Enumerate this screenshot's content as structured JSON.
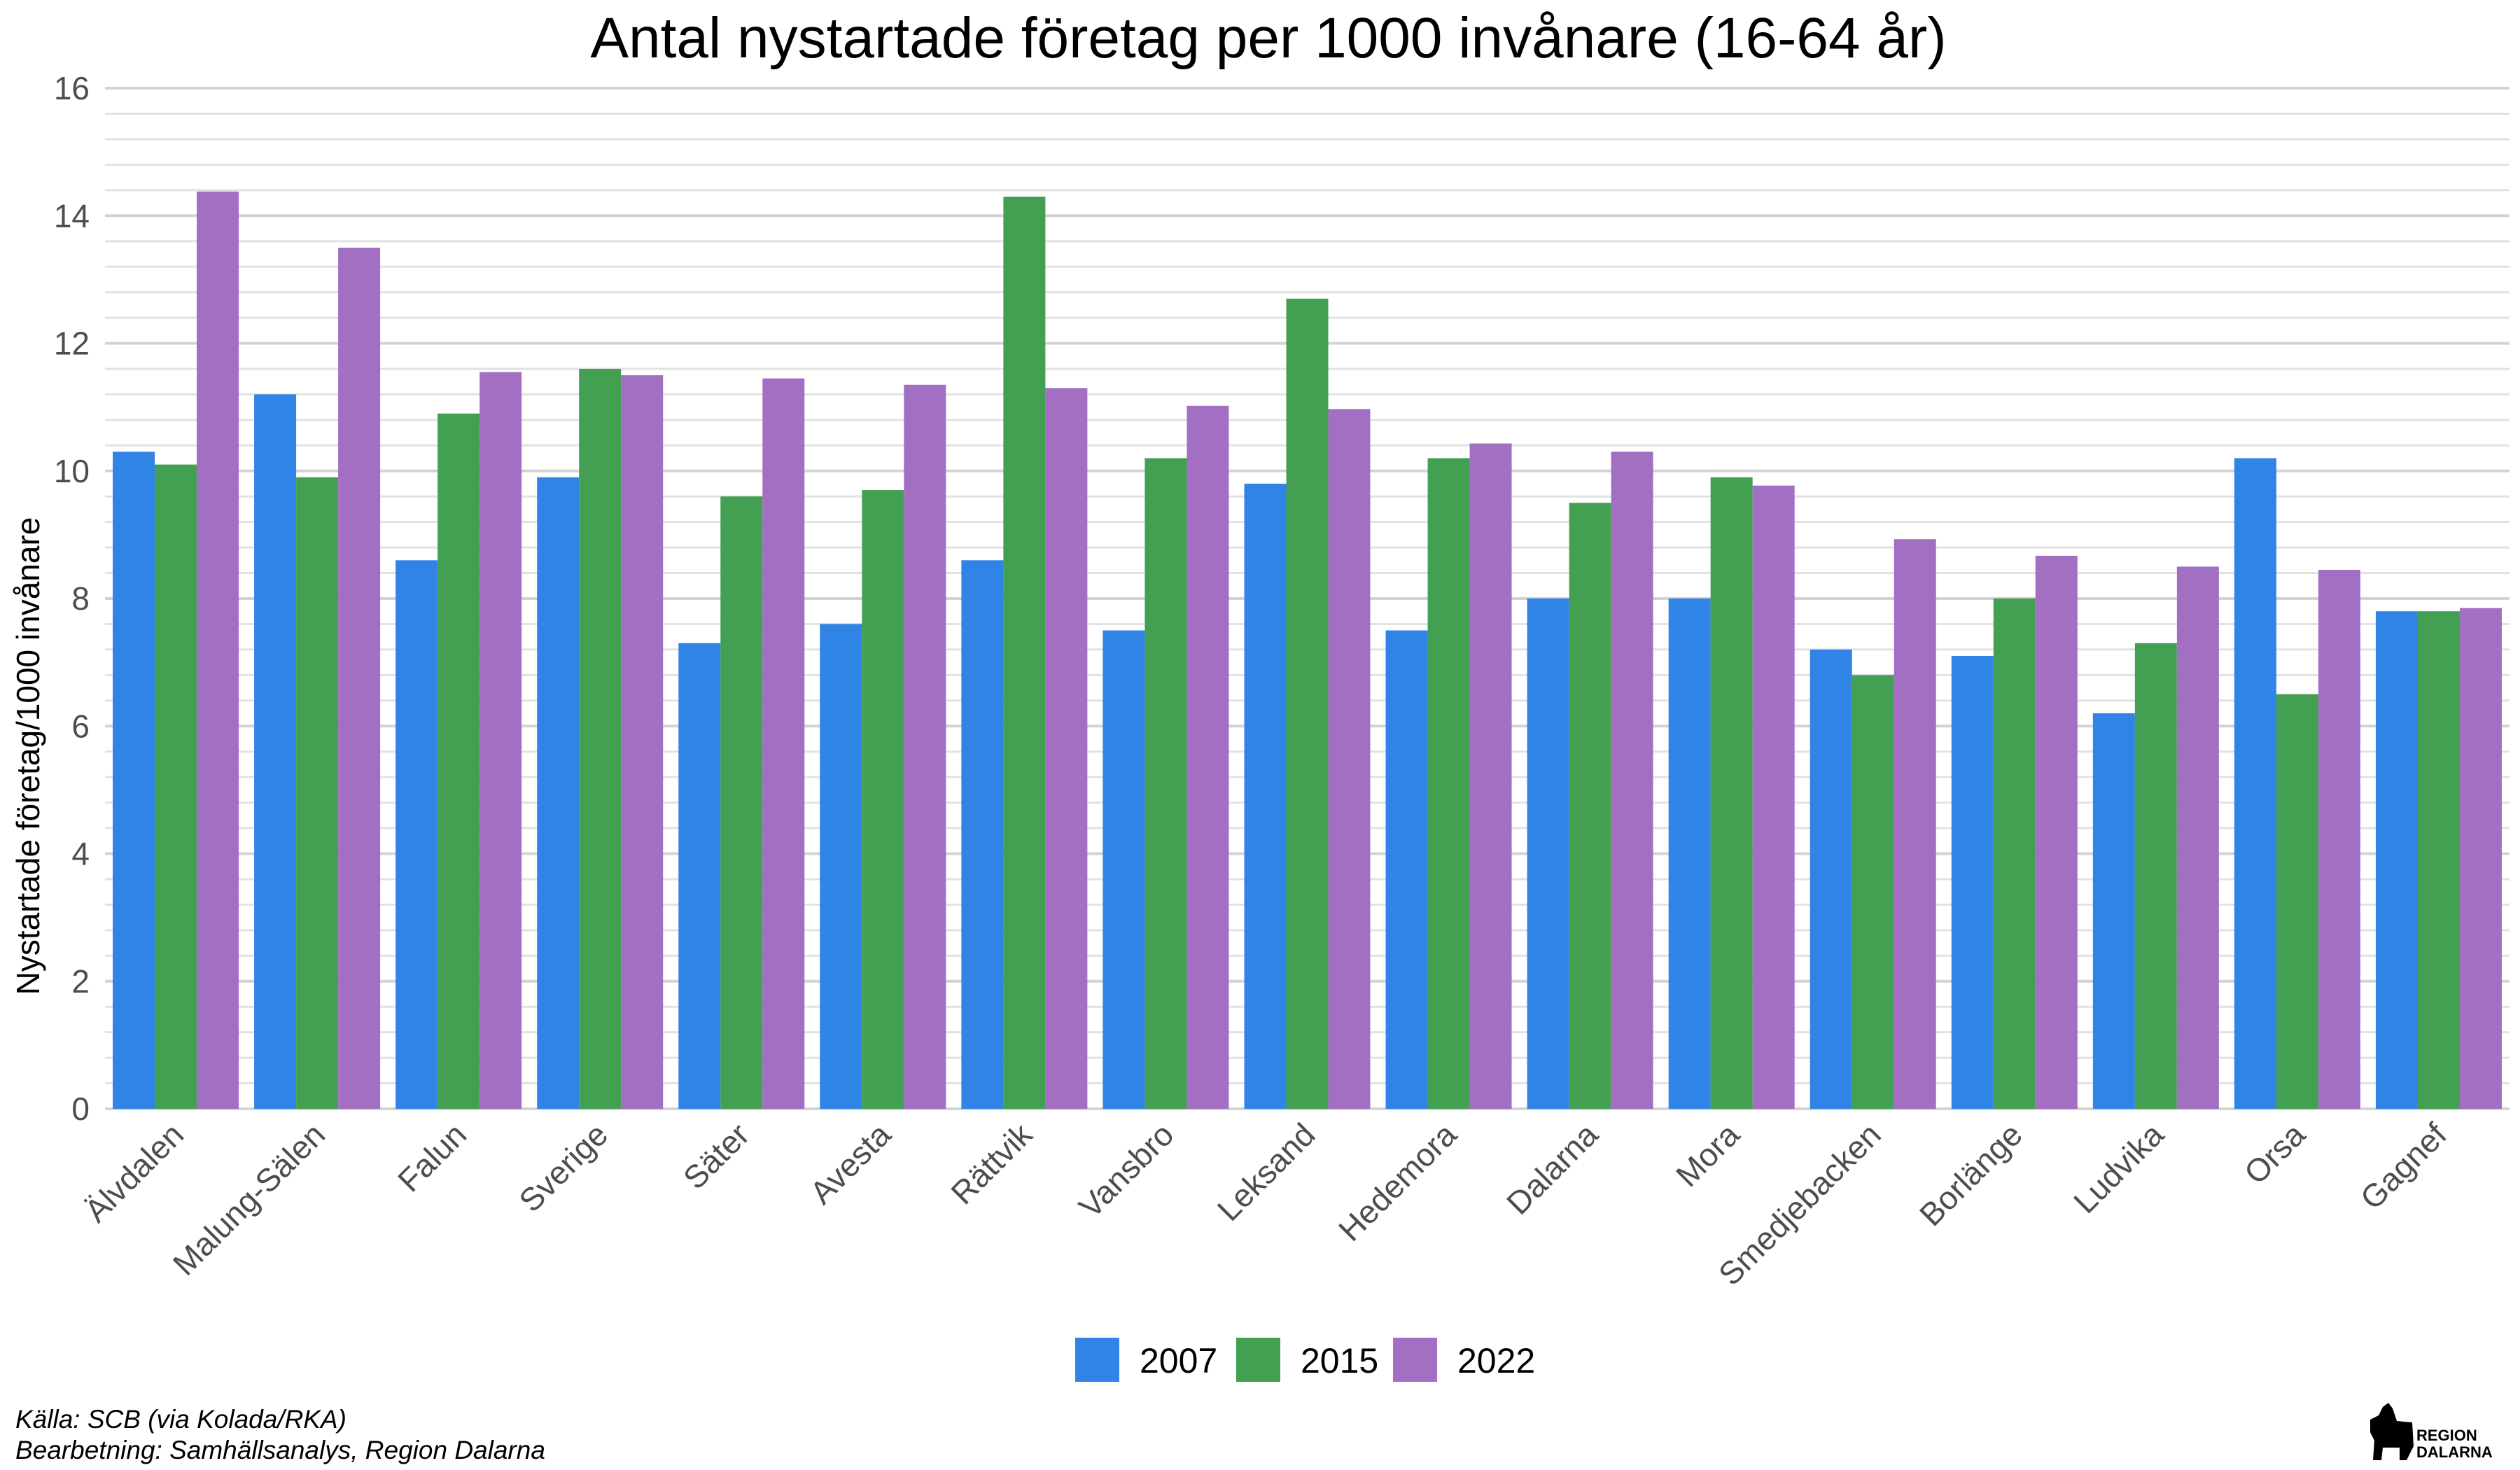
{
  "chart_data": {
    "type": "bar",
    "title": "Antal nystartade företag per 1000 invånare (16-64 år)",
    "ylabel": "Nystartade företag/1000 invånare",
    "xlabel": "",
    "ylim": [
      0,
      16
    ],
    "yticks": [
      "0",
      "2",
      "4",
      "6",
      "8",
      "10",
      "12",
      "14",
      "16"
    ],
    "grid": true,
    "legend_position": "bottom",
    "categories": [
      "Älvdalen",
      "Malung-Sälen",
      "Falun",
      "Sverige",
      "Säter",
      "Avesta",
      "Rättvik",
      "Vansbro",
      "Leksand",
      "Hedemora",
      "Dalarna",
      "Mora",
      "Smedjebacken",
      "Borlänge",
      "Ludvika",
      "Orsa",
      "Gagnef"
    ],
    "series": [
      {
        "name": "2007",
        "color": "#2f84e6",
        "values": [
          10.3,
          11.2,
          8.6,
          9.9,
          7.3,
          7.6,
          8.6,
          7.5,
          9.8,
          7.5,
          8.0,
          8.0,
          7.2,
          7.1,
          6.2,
          10.2,
          7.8
        ]
      },
      {
        "name": "2015",
        "color": "#43a052",
        "values": [
          10.1,
          9.9,
          10.9,
          11.6,
          9.6,
          9.7,
          14.3,
          10.2,
          12.7,
          10.2,
          9.5,
          9.9,
          6.8,
          8.0,
          7.3,
          6.5,
          7.8
        ]
      },
      {
        "name": "2022",
        "color": "#a26fc3",
        "values": [
          14.38,
          13.5,
          11.55,
          11.5,
          11.45,
          11.35,
          11.3,
          11.02,
          10.97,
          10.43,
          10.3,
          9.77,
          8.93,
          8.67,
          8.5,
          8.45,
          7.85
        ]
      }
    ],
    "caption": {
      "source": "Källa: SCB (via Kolada/RKA)",
      "processing": "Bearbetning: Samhällsanalys, Region Dalarna"
    },
    "logo": {
      "line1": "REGION",
      "line2": "DALARNA"
    }
  }
}
